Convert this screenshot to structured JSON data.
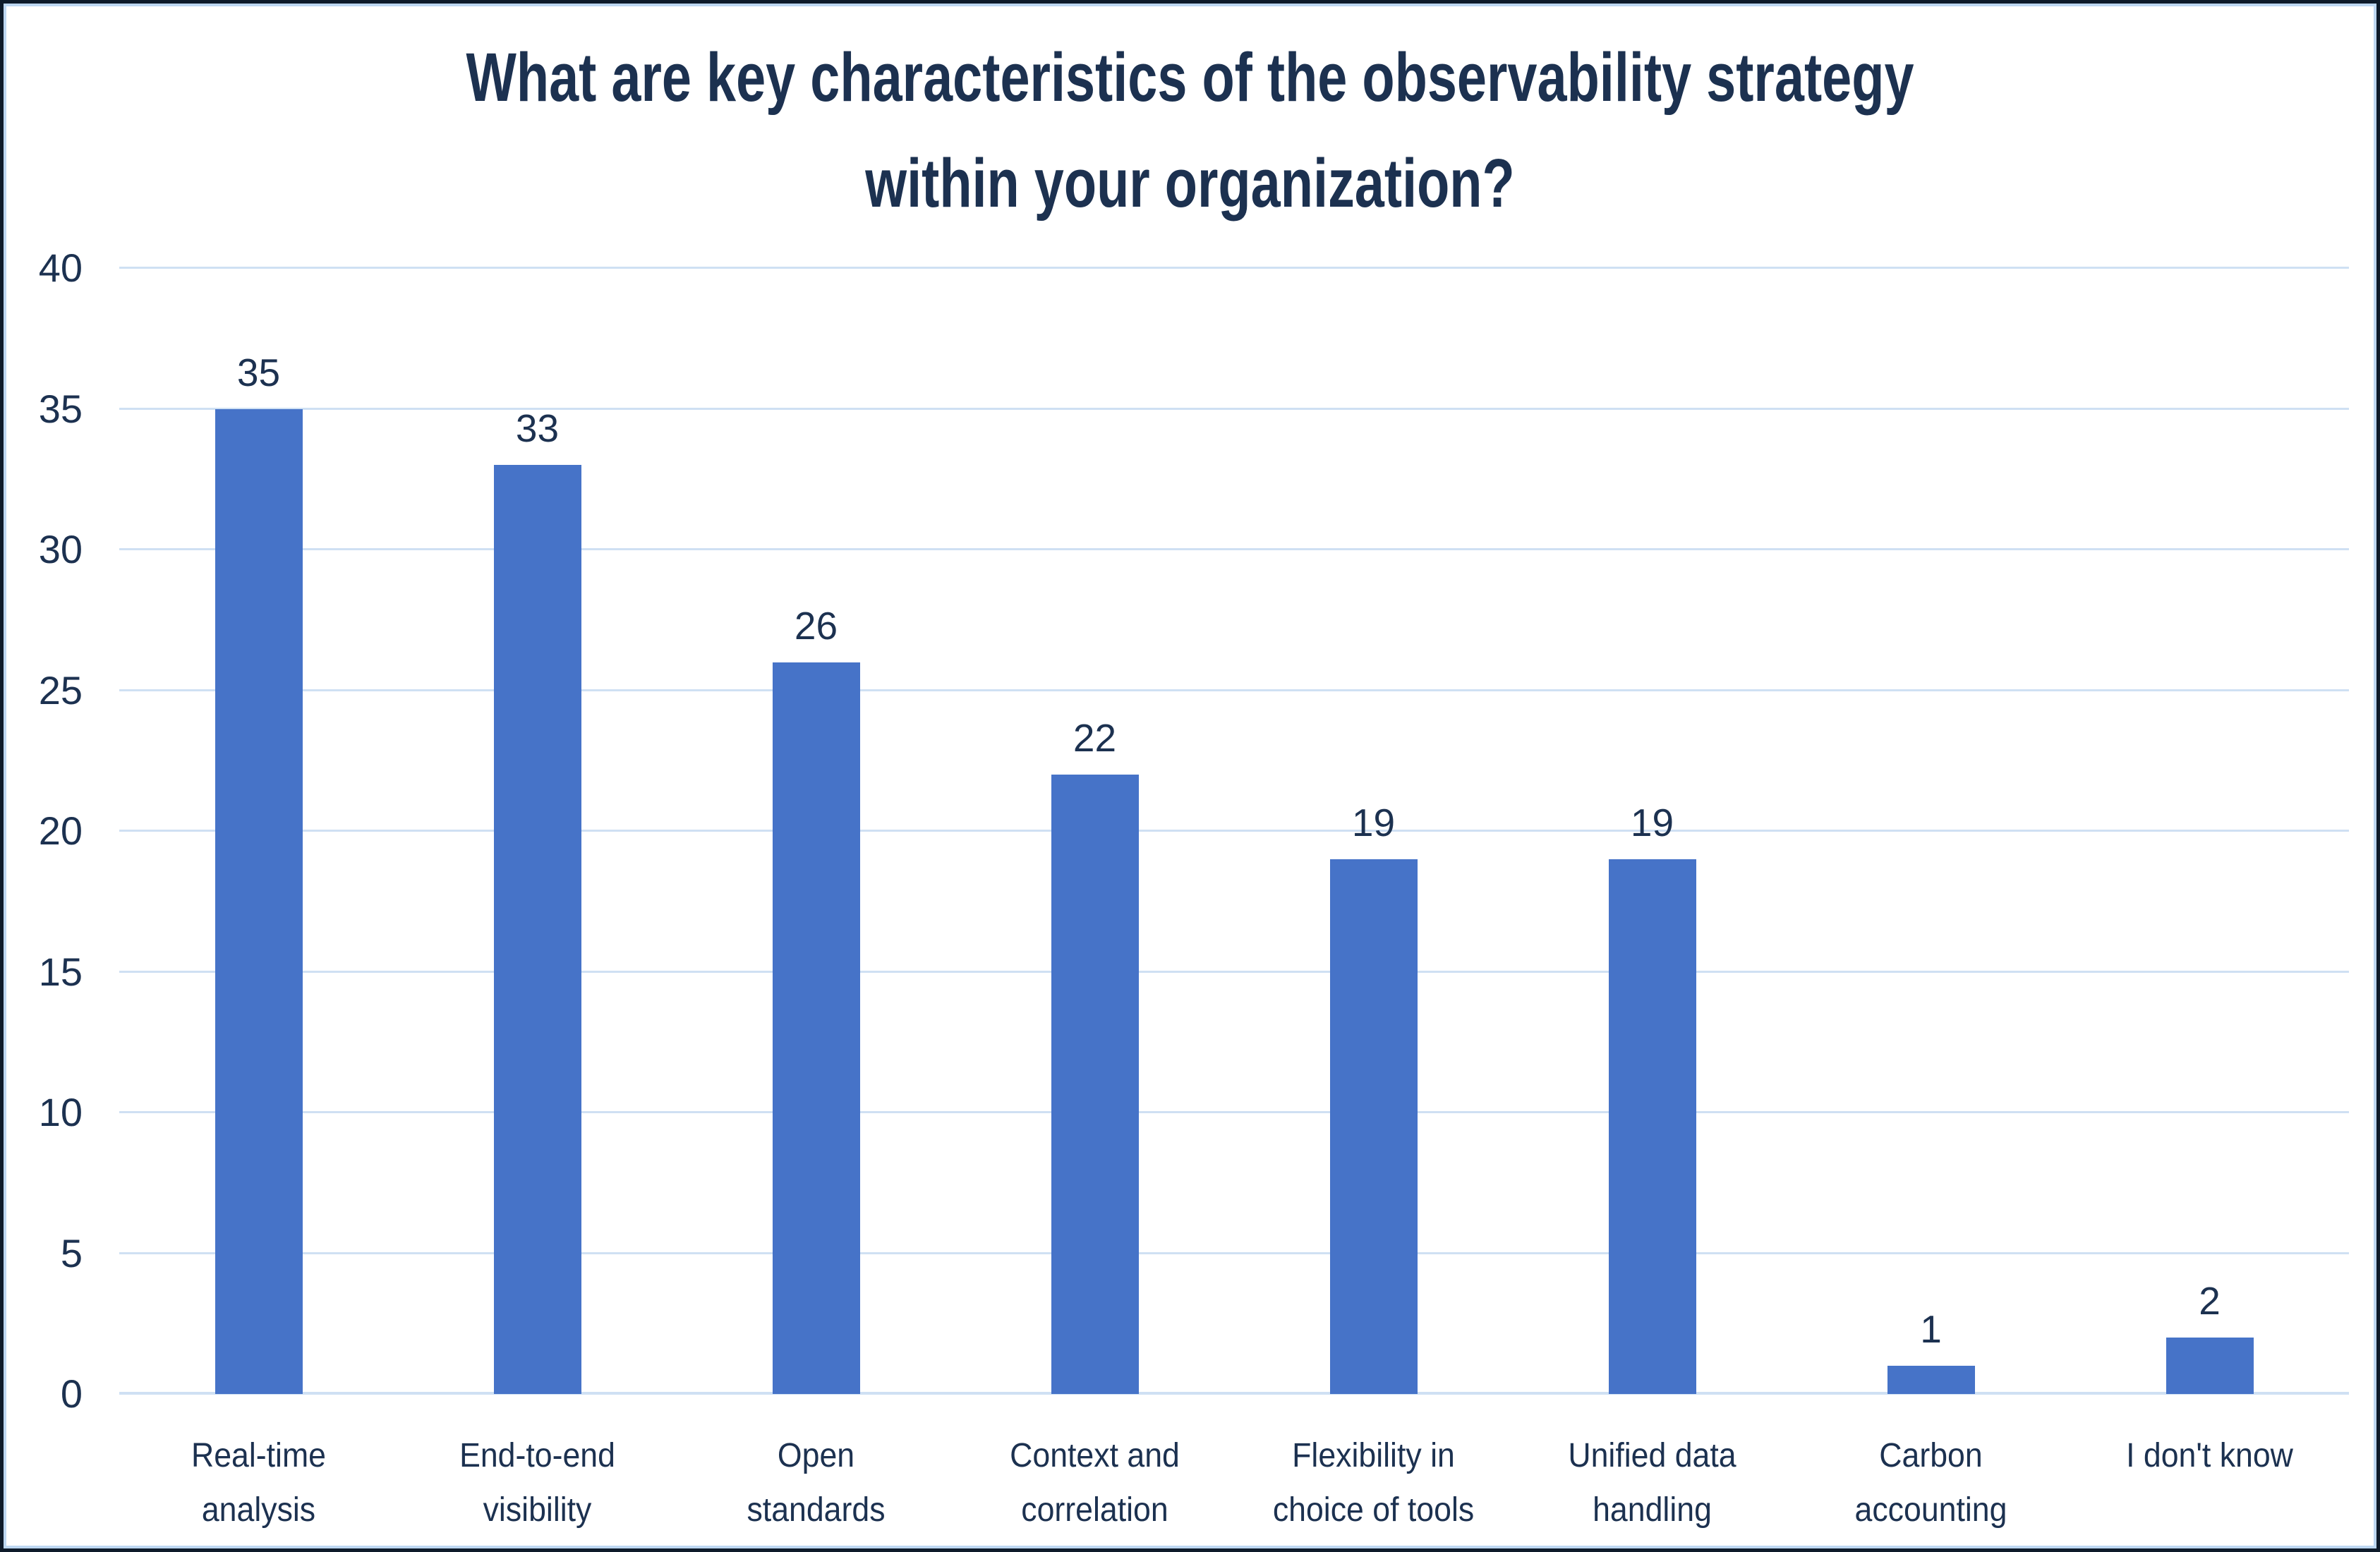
{
  "chart_data": {
    "type": "bar",
    "title": "What are key characteristics of the observability strategy within your organization?",
    "title_lines": [
      "What are key characteristics of the observability strategy",
      "within your organization?"
    ],
    "categories": [
      "Real-time analysis",
      "End-to-end visibility",
      "Open standards",
      "Context and correlation",
      "Flexibility in choice of tools",
      "Unified data handling",
      "Carbon accounting",
      "I don't know"
    ],
    "category_lines": [
      [
        "Real-time",
        "analysis"
      ],
      [
        "End-to-end",
        "visibility"
      ],
      [
        "Open",
        "standards"
      ],
      [
        "Context and",
        "correlation"
      ],
      [
        "Flexibility in",
        "choice of tools"
      ],
      [
        "Unified data",
        "handling"
      ],
      [
        "Carbon",
        "accounting"
      ],
      [
        "I don't know"
      ]
    ],
    "values": [
      35,
      33,
      26,
      22,
      19,
      19,
      1,
      2
    ],
    "xlabel": "",
    "ylabel": "",
    "ylim": [
      0,
      40
    ],
    "yticks": [
      0,
      5,
      10,
      15,
      20,
      25,
      30,
      35,
      40
    ],
    "grid": true,
    "legend": false,
    "data_labels_shown": true,
    "colors": {
      "bar": "#4673c8",
      "gridline": "#cfe0f3",
      "text": "#1c3150",
      "frame_outer": "#0e1b2a",
      "frame_inner": "#bdd7f2",
      "background": "#ffffff"
    }
  }
}
